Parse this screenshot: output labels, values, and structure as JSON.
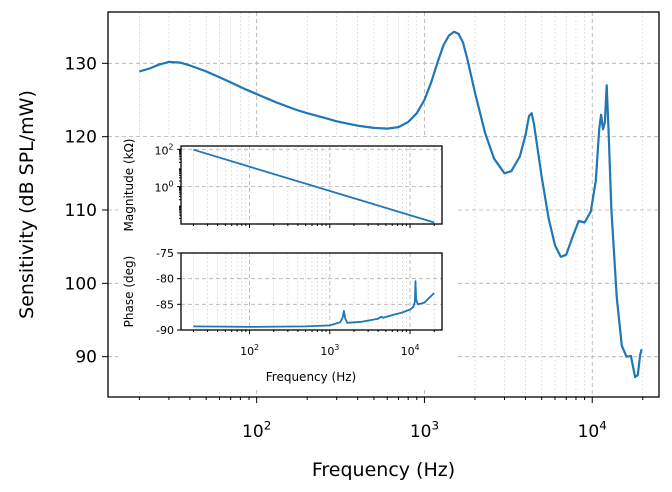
{
  "chart_data": [
    {
      "type": "line",
      "xlabel": "Frequency (Hz)",
      "ylabel": "Sensitivity (dB SPL/mW)",
      "xscale": "log",
      "xlim": [
        13,
        25000
      ],
      "ylim": [
        84.5,
        137
      ],
      "xticks": [
        {
          "value": 100,
          "label": "10^2"
        },
        {
          "value": 1000,
          "label": "10^3"
        },
        {
          "value": 10000,
          "label": "10^4"
        }
      ],
      "yticks": [
        90,
        100,
        110,
        120,
        130
      ],
      "grid": true,
      "series": [
        {
          "color": "#1f77b4",
          "points": [
            [
              20,
              128.9
            ],
            [
              23,
              129.3
            ],
            [
              26,
              129.8
            ],
            [
              30,
              130.2
            ],
            [
              35,
              130.1
            ],
            [
              40,
              129.7
            ],
            [
              50,
              128.9
            ],
            [
              60,
              128.1
            ],
            [
              70,
              127.4
            ],
            [
              85,
              126.5
            ],
            [
              100,
              125.8
            ],
            [
              130,
              124.7
            ],
            [
              170,
              123.7
            ],
            [
              200,
              123.2
            ],
            [
              250,
              122.6
            ],
            [
              300,
              122.1
            ],
            [
              400,
              121.5
            ],
            [
              500,
              121.2
            ],
            [
              600,
              121.1
            ],
            [
              700,
              121.3
            ],
            [
              800,
              122.0
            ],
            [
              900,
              123.2
            ],
            [
              1000,
              125.0
            ],
            [
              1100,
              127.5
            ],
            [
              1200,
              130.2
            ],
            [
              1300,
              132.5
            ],
            [
              1400,
              133.8
            ],
            [
              1500,
              134.3
            ],
            [
              1600,
              134.0
            ],
            [
              1700,
              132.8
            ],
            [
              1800,
              130.6
            ],
            [
              2000,
              126.0
            ],
            [
              2300,
              120.5
            ],
            [
              2600,
              117.0
            ],
            [
              3000,
              115.0
            ],
            [
              3300,
              115.3
            ],
            [
              3700,
              117.3
            ],
            [
              4000,
              120.2
            ],
            [
              4200,
              122.8
            ],
            [
              4350,
              123.2
            ],
            [
              4500,
              121.7
            ],
            [
              5000,
              114.5
            ],
            [
              5500,
              108.8
            ],
            [
              6000,
              105.2
            ],
            [
              6500,
              103.6
            ],
            [
              7000,
              103.9
            ],
            [
              7600,
              106.2
            ],
            [
              8300,
              108.5
            ],
            [
              9000,
              108.3
            ],
            [
              9800,
              109.8
            ],
            [
              10500,
              114.0
            ],
            [
              11000,
              121.0
            ],
            [
              11300,
              123.0
            ],
            [
              11600,
              121.0
            ],
            [
              11900,
              122.0
            ],
            [
              12200,
              127.0
            ],
            [
              12500,
              121.0
            ],
            [
              13000,
              110.0
            ],
            [
              14000,
              98.0
            ],
            [
              15000,
              91.5
            ],
            [
              16000,
              90.0
            ],
            [
              17000,
              90.1
            ],
            [
              18000,
              87.2
            ],
            [
              18700,
              87.5
            ],
            [
              19300,
              90.2
            ],
            [
              19700,
              91.0
            ]
          ]
        }
      ]
    },
    {
      "type": "line",
      "ylabel": "Magnitude (kΩ)",
      "xscale": "log",
      "yscale": "log",
      "xlim": [
        14,
        25000
      ],
      "ylim": [
        0.01,
        150
      ],
      "xticks": [
        {
          "value": 100,
          "label": ""
        },
        {
          "value": 1000,
          "label": ""
        },
        {
          "value": 10000,
          "label": ""
        }
      ],
      "yticks": [
        {
          "value": 1,
          "label": "10^0"
        },
        {
          "value": 100,
          "label": "10^2"
        }
      ],
      "grid": true,
      "series": [
        {
          "color": "#1f77b4",
          "points": [
            [
              20,
              95
            ],
            [
              20000,
              0.012
            ]
          ]
        }
      ]
    },
    {
      "type": "line",
      "xlabel": "Frequency (Hz)",
      "ylabel": "Phase (deg)",
      "xscale": "log",
      "xlim": [
        14,
        25000
      ],
      "ylim": [
        -90,
        -75
      ],
      "xticks": [
        {
          "value": 100,
          "label": "10^2"
        },
        {
          "value": 1000,
          "label": "10^3"
        },
        {
          "value": 10000,
          "label": "10^4"
        }
      ],
      "yticks": [
        -90,
        -85,
        -80,
        -75
      ],
      "grid": true,
      "series": [
        {
          "color": "#1f77b4",
          "points": [
            [
              20,
              -89.3
            ],
            [
              100,
              -89.4
            ],
            [
              500,
              -89.3
            ],
            [
              1000,
              -89.1
            ],
            [
              1350,
              -88.5
            ],
            [
              1450,
              -87.5
            ],
            [
              1500,
              -86.3
            ],
            [
              1560,
              -87.8
            ],
            [
              1650,
              -88.6
            ],
            [
              2500,
              -88.4
            ],
            [
              4000,
              -87.8
            ],
            [
              4400,
              -87.4
            ],
            [
              4600,
              -87.6
            ],
            [
              6000,
              -87.1
            ],
            [
              8000,
              -86.6
            ],
            [
              10000,
              -86.0
            ],
            [
              11000,
              -85.5
            ],
            [
              11500,
              -84.5
            ],
            [
              11700,
              -80.5
            ],
            [
              11900,
              -84.0
            ],
            [
              12500,
              -85.0
            ],
            [
              15000,
              -84.7
            ],
            [
              20000,
              -82.8
            ]
          ]
        }
      ]
    }
  ]
}
